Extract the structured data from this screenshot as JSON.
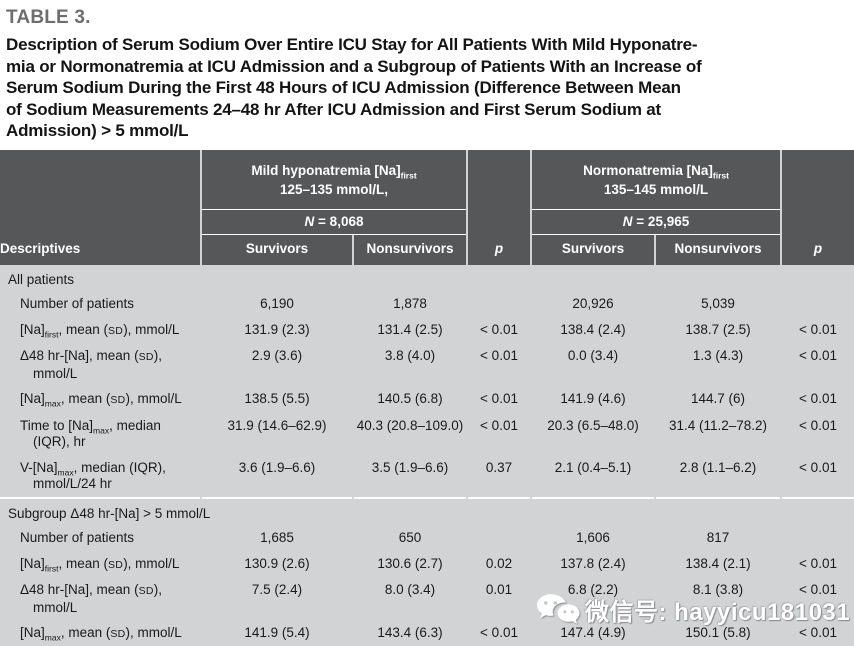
{
  "caption": {
    "label": "TABLE 3.",
    "title_lines": [
      "Description of Serum Sodium Over Entire ICU Stay for All Patients With Mild Hyponatre-",
      "mia or Normonatremia at ICU Admission and a Subgroup of Patients With an Increase of",
      "Serum Sodium During the First 48 Hours of ICU Admission (Difference Between Mean",
      "of Sodium Measurements 24–48 hr After ICU Admission and First Serum Sodium at",
      "Admission) > 5 mmol/L"
    ]
  },
  "colors": {
    "header_bg": "#565759",
    "body_bg": "#d2d3d5",
    "caption_label": "#6d6e71",
    "header_text": "#ffffff"
  },
  "table": {
    "columns": [
      "Descriptives",
      "Survivors",
      "Nonsurvivors",
      "p",
      "Survivors",
      "Nonsurvivors",
      "p"
    ],
    "groups": [
      {
        "name": "Mild hyponatremia [Na]",
        "name_sub": "first",
        "range": "125–135 mmol/L,",
        "n_symbol": "N",
        "n_value": " = 8,068"
      },
      {
        "name": "Normonatremia [Na]",
        "name_sub": "first",
        "range": "135–145 mmol/L",
        "n_symbol": "N",
        "n_value": " = 25,965"
      }
    ],
    "sections": [
      {
        "title": "All patients",
        "rows": [
          {
            "label": [
              [
                "Number of patients"
              ]
            ],
            "cells": [
              "6,190",
              "1,878",
              "",
              "20,926",
              "5,039",
              ""
            ]
          },
          {
            "label": [
              [
                "[Na]"
              ],
              [
                "first",
                "sub"
              ],
              [
                ", mean ("
              ],
              [
                "SD",
                "sc"
              ],
              [
                "), mmol/L"
              ]
            ],
            "cells": [
              "131.9 (2.3)",
              "131.4 (2.5)",
              "< 0.01",
              "138.4 (2.4)",
              "138.7 (2.5)",
              "< 0.01"
            ]
          },
          {
            "label": [
              [
                "Δ48 hr-[Na], mean ("
              ],
              [
                "SD",
                "sc"
              ],
              [
                "),"
              ],
              [
                "mmol/L",
                "wrap"
              ]
            ],
            "cells": [
              "2.9 (3.6)",
              "3.8 (4.0)",
              "< 0.01",
              "0.0 (3.4)",
              "1.3 (4.3)",
              "< 0.01"
            ]
          },
          {
            "label": [
              [
                "[Na]"
              ],
              [
                "max",
                "sub"
              ],
              [
                ", mean ("
              ],
              [
                "SD",
                "sc"
              ],
              [
                "), mmol/L"
              ]
            ],
            "cells": [
              "138.5 (5.5)",
              "140.5 (6.8)",
              "< 0.01",
              "141.9 (4.6)",
              "144.7 (6)",
              "< 0.01"
            ]
          },
          {
            "label": [
              [
                "Time to [Na]"
              ],
              [
                "max",
                "sub"
              ],
              [
                ", median"
              ],
              [
                "(IQR), hr",
                "wrap"
              ]
            ],
            "cells": [
              "31.9 (14.6–62.9)",
              "40.3 (20.8–109.0)",
              "< 0.01",
              "20.3 (6.5–48.0)",
              "31.4 (11.2–78.2)",
              "< 0.01"
            ]
          },
          {
            "label": [
              [
                "V-[Na]"
              ],
              [
                "max",
                "sub"
              ],
              [
                ", median (IQR),"
              ],
              [
                "mmol/L/24 hr",
                "wrap"
              ]
            ],
            "cells": [
              "3.6 (1.9–6.6)",
              "3.5 (1.9–6.6)",
              "0.37",
              "2.1 (0.4–5.1)",
              "2.8 (1.1–6.2)",
              "< 0.01"
            ]
          }
        ]
      },
      {
        "title": "Subgroup Δ48 hr-[Na] > 5 mmol/L",
        "rows": [
          {
            "label": [
              [
                "Number of patients"
              ]
            ],
            "cells": [
              "1,685",
              "650",
              "",
              "1,606",
              "817",
              ""
            ]
          },
          {
            "label": [
              [
                "[Na]"
              ],
              [
                "first",
                "sub"
              ],
              [
                ", mean ("
              ],
              [
                "SD",
                "sc"
              ],
              [
                "), mmol/L"
              ]
            ],
            "cells": [
              "130.9 (2.6)",
              "130.6 (2.7)",
              "0.02",
              "137.8 (2.4)",
              "138.4 (2.1)",
              "< 0.01"
            ]
          },
          {
            "label": [
              [
                "Δ48 hr-[Na], mean ("
              ],
              [
                "SD",
                "sc"
              ],
              [
                "),"
              ],
              [
                "mmol/L",
                "wrap"
              ]
            ],
            "cells": [
              "7.5 (2.4)",
              "8.0 (3.4)",
              "0.01",
              "6.8 (2.2)",
              "8.1 (3.8)",
              "< 0.01"
            ]
          },
          {
            "label": [
              [
                "[Na]"
              ],
              [
                "max",
                "sub"
              ],
              [
                ", mean ("
              ],
              [
                "SD",
                "sc"
              ],
              [
                "), mmol/L"
              ]
            ],
            "cells": [
              "141.9 (5.4)",
              "143.4 (6.3)",
              "< 0.01",
              "147.4 (4.9)",
              "150.1 (5.8)",
              "< 0.01"
            ]
          }
        ]
      }
    ]
  },
  "watermark": {
    "icon": "wechat-icon",
    "text": "微信号: hayyicu181031"
  }
}
